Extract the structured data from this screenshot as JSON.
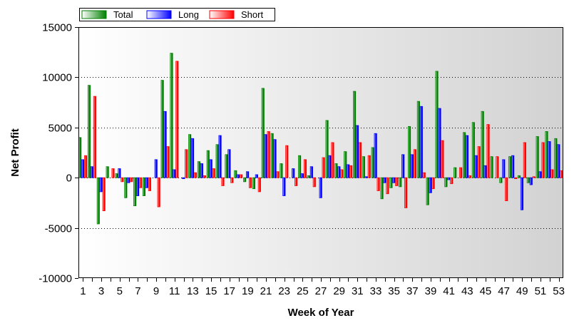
{
  "chart_data": {
    "type": "bar",
    "title": "",
    "xlabel": "Week of Year",
    "ylabel": "Net Profit",
    "ylim": [
      -10000,
      15000
    ],
    "yticks": [
      -10000,
      -5000,
      0,
      5000,
      10000,
      15000
    ],
    "yticklabels": [
      "-10000",
      "-5000",
      "0",
      "5000",
      "10000",
      "15000"
    ],
    "xticks": [
      1,
      3,
      5,
      7,
      9,
      11,
      13,
      15,
      17,
      19,
      21,
      23,
      25,
      27,
      29,
      31,
      33,
      35,
      37,
      39,
      41,
      43,
      45,
      47,
      49,
      51,
      53
    ],
    "grid": true,
    "legend_position": "top-left",
    "categories": [
      1,
      2,
      3,
      4,
      5,
      6,
      7,
      8,
      9,
      10,
      11,
      12,
      13,
      14,
      15,
      16,
      17,
      18,
      19,
      20,
      21,
      22,
      23,
      24,
      25,
      26,
      27,
      28,
      29,
      30,
      31,
      32,
      33,
      34,
      35,
      36,
      37,
      38,
      39,
      40,
      41,
      42,
      43,
      44,
      45,
      46,
      47,
      48,
      49,
      50,
      51,
      52,
      53
    ],
    "series": [
      {
        "name": "Total",
        "color": "#008000",
        "values": [
          4000,
          9200,
          -4600,
          1100,
          400,
          -2000,
          -2800,
          -1800,
          0,
          9700,
          12400,
          0,
          4300,
          1600,
          2700,
          3300,
          2300,
          700,
          -400,
          -1100,
          8900,
          4400,
          1400,
          0,
          2200,
          200,
          0,
          5700,
          1400,
          2600,
          8600,
          2100,
          3000,
          -2100,
          -1000,
          -900,
          5100,
          7600,
          -2700,
          10600,
          -900,
          1000,
          4500,
          5500,
          6600,
          2100,
          -500,
          2100,
          200,
          -500,
          4100,
          4600,
          3900
        ]
      },
      {
        "name": "Long",
        "color": "#0000ff",
        "values": [
          1800,
          1100,
          -1400,
          0,
          900,
          -500,
          -1800,
          -1000,
          1800,
          6600,
          800,
          -100,
          3900,
          1400,
          1800,
          4200,
          2800,
          300,
          600,
          300,
          4300,
          3800,
          -1800,
          900,
          400,
          1100,
          -2000,
          2200,
          1100,
          1300,
          5200,
          100,
          4400,
          -500,
          -500,
          2300,
          2300,
          7100,
          -1500,
          6900,
          -200,
          0,
          4200,
          2200,
          1200,
          0,
          1800,
          2200,
          -3200,
          -700,
          600,
          3600,
          3300
        ]
      },
      {
        "name": "Short",
        "color": "#ff0000",
        "values": [
          2200,
          8100,
          -3300,
          900,
          -400,
          -400,
          -1000,
          -1300,
          -2900,
          3100,
          11600,
          2800,
          500,
          200,
          900,
          -800,
          -500,
          300,
          -1000,
          -1400,
          4600,
          600,
          3200,
          -800,
          1800,
          -900,
          2000,
          3500,
          800,
          1200,
          3500,
          2200,
          -1300,
          -1600,
          -800,
          -3000,
          2800,
          500,
          -1100,
          3700,
          -600,
          1000,
          200,
          3100,
          5300,
          2100,
          -2300,
          -100,
          3500,
          100,
          3500,
          800,
          700
        ]
      }
    ]
  }
}
